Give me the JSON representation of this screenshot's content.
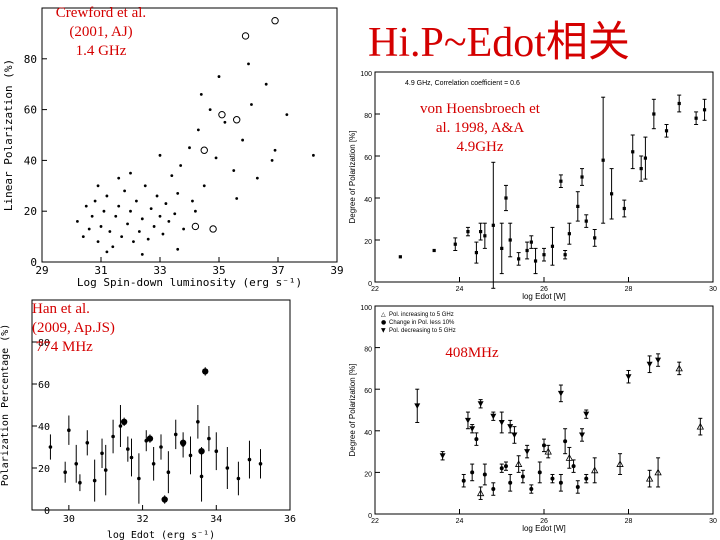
{
  "slide": {
    "title": "Hi.P~Edot相关",
    "overlays": {
      "p1": [
        "Crewford et al.",
        "(2001, AJ)",
        "1.4 GHz"
      ],
      "p2": [
        "von Hoensbroech et",
        "al. 1998, A&A",
        "4.9GHz"
      ],
      "p3": [
        "Han et al.",
        "(2009, Ap.JS)",
        " 774 MHz"
      ],
      "p4": [
        "408MHz"
      ]
    }
  },
  "chart_data": [
    {
      "type": "scatter",
      "title": "",
      "xlabel": "Log Spin-down luminosity (erg s⁻¹)",
      "ylabel": "Linear Polarization (%)",
      "xlim": [
        29,
        39
      ],
      "ylim": [
        0,
        100
      ],
      "xticks": [
        "29",
        "31",
        "33",
        "35",
        "37",
        "39"
      ],
      "yticks": [
        "0",
        "20",
        "40",
        "60",
        "80"
      ],
      "series": [
        {
          "marker": "dot",
          "points": [
            [
              30.2,
              16
            ],
            [
              30.4,
              10
            ],
            [
              30.5,
              22
            ],
            [
              30.6,
              13
            ],
            [
              30.7,
              18
            ],
            [
              30.8,
              24
            ],
            [
              30.9,
              8
            ],
            [
              31.0,
              14
            ],
            [
              31.1,
              20
            ],
            [
              31.2,
              26
            ],
            [
              31.3,
              12
            ],
            [
              31.4,
              6
            ],
            [
              31.5,
              18
            ],
            [
              31.6,
              22
            ],
            [
              31.7,
              10
            ],
            [
              31.8,
              28
            ],
            [
              31.9,
              15
            ],
            [
              32.0,
              20
            ],
            [
              32.1,
              8
            ],
            [
              32.2,
              24
            ],
            [
              32.3,
              12
            ],
            [
              32.4,
              17
            ],
            [
              32.5,
              30
            ],
            [
              32.6,
              9
            ],
            [
              32.7,
              21
            ],
            [
              32.8,
              14
            ],
            [
              32.9,
              26
            ],
            [
              33.0,
              18
            ],
            [
              33.1,
              11
            ],
            [
              33.2,
              23
            ],
            [
              33.3,
              16
            ],
            [
              33.4,
              34
            ],
            [
              33.5,
              19
            ],
            [
              33.6,
              27
            ],
            [
              33.7,
              38
            ],
            [
              33.8,
              13
            ],
            [
              34.0,
              45
            ],
            [
              34.1,
              24
            ],
            [
              34.3,
              52
            ],
            [
              34.5,
              30
            ],
            [
              34.7,
              60
            ],
            [
              34.9,
              41
            ],
            [
              35.2,
              55
            ],
            [
              35.5,
              36
            ],
            [
              35.8,
              48
            ],
            [
              36.1,
              62
            ],
            [
              36.3,
              33
            ],
            [
              36.6,
              70
            ],
            [
              36.9,
              44
            ],
            [
              37.3,
              58
            ],
            [
              31.2,
              4
            ],
            [
              32.4,
              3
            ],
            [
              33.6,
              5
            ],
            [
              30.9,
              30
            ],
            [
              32.0,
              35
            ],
            [
              33.0,
              42
            ],
            [
              31.6,
              33
            ],
            [
              34.4,
              66
            ],
            [
              35.0,
              73
            ],
            [
              36.0,
              78
            ],
            [
              34.2,
              20
            ],
            [
              35.6,
              25
            ],
            [
              36.8,
              40
            ],
            [
              38.2,
              42
            ]
          ]
        },
        {
          "marker": "circle",
          "points": [
            [
              36.9,
              95
            ],
            [
              35.9,
              89
            ],
            [
              35.1,
              58
            ],
            [
              35.6,
              56
            ],
            [
              34.5,
              44
            ],
            [
              34.8,
              13
            ],
            [
              34.2,
              14
            ]
          ]
        }
      ]
    },
    {
      "type": "scatter",
      "title": "4.9 GHz, Correlation coefficient = 0.6",
      "xlabel": "log Edot [W]",
      "ylabel": "Degree of Polarization [%]",
      "xlim": [
        22,
        30
      ],
      "ylim": [
        0,
        100
      ],
      "xticks": [
        "22",
        "24",
        "26",
        "28",
        "30"
      ],
      "yticks": [
        "0",
        "20",
        "40",
        "60",
        "80",
        "100"
      ],
      "points": [
        [
          22.6,
          12,
          0
        ],
        [
          23.4,
          15,
          0
        ],
        [
          23.9,
          18,
          3
        ],
        [
          24.2,
          24,
          2
        ],
        [
          24.4,
          14,
          5
        ],
        [
          24.6,
          22,
          6
        ],
        [
          24.8,
          27,
          30
        ],
        [
          25.0,
          16,
          12
        ],
        [
          25.2,
          20,
          8
        ],
        [
          25.4,
          11,
          3
        ],
        [
          25.6,
          15,
          4
        ],
        [
          25.8,
          10,
          6
        ],
        [
          26.0,
          13,
          3
        ],
        [
          26.2,
          17,
          9
        ],
        [
          26.4,
          48,
          3
        ],
        [
          26.6,
          23,
          5
        ],
        [
          26.8,
          36,
          7
        ],
        [
          27.0,
          29,
          3
        ],
        [
          27.2,
          21,
          4
        ],
        [
          27.4,
          58,
          30
        ],
        [
          27.6,
          42,
          12
        ],
        [
          27.9,
          35,
          4
        ],
        [
          28.1,
          62,
          8
        ],
        [
          28.3,
          54,
          6
        ],
        [
          28.6,
          80,
          7
        ],
        [
          28.9,
          72,
          3
        ],
        [
          29.2,
          85,
          4
        ],
        [
          29.6,
          78,
          3
        ],
        [
          29.8,
          82,
          5
        ],
        [
          25.1,
          40,
          6
        ],
        [
          26.9,
          50,
          4
        ],
        [
          28.4,
          59,
          10
        ],
        [
          24.5,
          24,
          4
        ],
        [
          25.7,
          19,
          3
        ],
        [
          26.5,
          13,
          2
        ]
      ]
    },
    {
      "type": "scatter",
      "title": "",
      "xlabel": "log Edot (erg s⁻¹)",
      "ylabel": "Polarization Percentage (%)",
      "xlim": [
        29,
        36
      ],
      "ylim": [
        0,
        100
      ],
      "xticks": [
        "30",
        "32",
        "34",
        "36"
      ],
      "yticks": [
        "0",
        "20",
        "40",
        "60",
        "80"
      ],
      "points": [
        [
          29.5,
          30,
          6
        ],
        [
          30.0,
          38,
          7
        ],
        [
          30.2,
          22,
          9
        ],
        [
          30.5,
          32,
          6
        ],
        [
          30.7,
          14,
          10
        ],
        [
          30.9,
          27,
          7
        ],
        [
          31.0,
          19,
          12
        ],
        [
          31.2,
          35,
          8
        ],
        [
          31.4,
          40,
          10
        ],
        [
          31.6,
          29,
          6
        ],
        [
          31.7,
          25,
          9
        ],
        [
          31.9,
          15,
          12
        ],
        [
          32.1,
          33,
          5
        ],
        [
          32.3,
          22,
          8
        ],
        [
          32.5,
          30,
          6
        ],
        [
          32.7,
          18,
          10
        ],
        [
          32.9,
          36,
          7
        ],
        [
          33.1,
          31,
          6
        ],
        [
          33.3,
          26,
          9
        ],
        [
          33.5,
          42,
          8
        ],
        [
          33.6,
          16,
          12
        ],
        [
          33.8,
          34,
          6
        ],
        [
          34.0,
          28,
          9
        ],
        [
          34.3,
          20,
          10
        ],
        [
          34.6,
          15,
          8
        ],
        [
          35.2,
          22,
          7
        ],
        [
          31.5,
          42,
          2
        ],
        [
          33.1,
          32,
          2
        ],
        [
          33.6,
          28,
          2
        ],
        [
          32.2,
          34,
          2
        ],
        [
          33.7,
          66,
          2
        ],
        [
          32.6,
          5,
          2
        ],
        [
          30.3,
          13,
          4
        ],
        [
          34.9,
          24,
          9
        ],
        [
          29.9,
          18,
          5
        ]
      ]
    },
    {
      "type": "scatter",
      "title": "",
      "xlabel": "log Edot [W]",
      "ylabel": "Degree of Polarization [%]",
      "xlim": [
        22,
        30
      ],
      "ylim": [
        0,
        100
      ],
      "xticks": [
        "22",
        "24",
        "26",
        "28",
        "30"
      ],
      "yticks": [
        "0",
        "20",
        "40",
        "60",
        "80",
        "100"
      ],
      "legend": [
        "Pol. increasing to 5 GHz",
        "Change in Pol. less 10%",
        "Pol. decreasing to 5 GHz"
      ],
      "series": [
        {
          "name": "Pol. increasing to 5 GHz",
          "marker": "tri-up",
          "points": [
            [
              25.4,
              24,
              4
            ],
            [
              26.1,
              30,
              3
            ],
            [
              26.6,
              27,
              5
            ],
            [
              27.2,
              21,
              6
            ],
            [
              27.8,
              24,
              5
            ],
            [
              28.5,
              17,
              4
            ],
            [
              28.7,
              20,
              7
            ],
            [
              29.2,
              70,
              3
            ],
            [
              24.5,
              10,
              3
            ],
            [
              29.7,
              42,
              4
            ]
          ]
        },
        {
          "name": "Change in Pol. less 10%",
          "marker": "dot",
          "points": [
            [
              24.1,
              16,
              3
            ],
            [
              24.3,
              20,
              4
            ],
            [
              24.6,
              19,
              5
            ],
            [
              24.8,
              12,
              3
            ],
            [
              25.0,
              22,
              2
            ],
            [
              25.2,
              15,
              4
            ],
            [
              25.5,
              18,
              3
            ],
            [
              25.7,
              12,
              2
            ],
            [
              25.9,
              20,
              5
            ],
            [
              26.0,
              33,
              3
            ],
            [
              26.2,
              17,
              2
            ],
            [
              26.4,
              15,
              4
            ],
            [
              26.5,
              35,
              6
            ],
            [
              26.7,
              23,
              3
            ],
            [
              27.0,
              17,
              2
            ],
            [
              24.4,
              36,
              3
            ],
            [
              25.1,
              23,
              2
            ],
            [
              26.8,
              13,
              3
            ]
          ]
        },
        {
          "name": "Pol. decreasing to 5 GHz",
          "marker": "tri-down",
          "points": [
            [
              23.0,
              52,
              8
            ],
            [
              23.6,
              28,
              2
            ],
            [
              24.2,
              45,
              4
            ],
            [
              24.5,
              53,
              2
            ],
            [
              24.8,
              47,
              2
            ],
            [
              25.0,
              44,
              5
            ],
            [
              25.3,
              38,
              4
            ],
            [
              25.6,
              30,
              3
            ],
            [
              26.4,
              58,
              4
            ],
            [
              27.0,
              48,
              2
            ],
            [
              28.0,
              66,
              3
            ],
            [
              28.5,
              72,
              4
            ],
            [
              28.7,
              74,
              3
            ],
            [
              24.3,
              41,
              2
            ],
            [
              25.2,
              42,
              3
            ],
            [
              26.9,
              38,
              3
            ]
          ]
        }
      ]
    }
  ]
}
